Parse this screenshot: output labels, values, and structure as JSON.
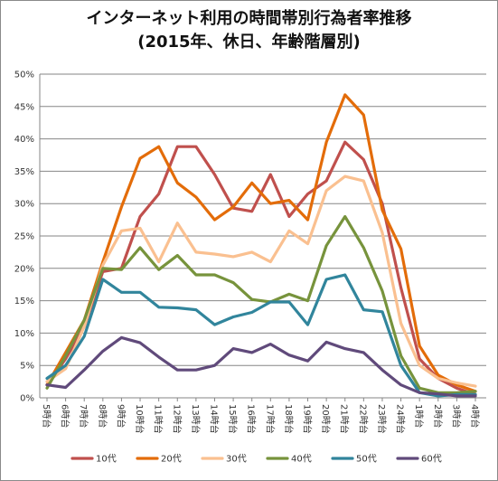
{
  "chart_data": {
    "type": "line",
    "title": "インターネット利用の時間帯別行為者率推移",
    "subtitle": "(2015年、休日、年齢階層別)",
    "xlabel": "",
    "ylabel": "",
    "categories": [
      "5時台",
      "6時台",
      "7時台",
      "8時台",
      "9時台",
      "10時台",
      "11時台",
      "12時台",
      "13時台",
      "14時台",
      "15時台",
      "16時台",
      "17時台",
      "18時台",
      "19時台",
      "20時台",
      "21時台",
      "22時台",
      "23時台",
      "24時台",
      "1時台",
      "2時台",
      "3時台",
      "4時台"
    ],
    "ylim": [
      0,
      50
    ],
    "yticks": [
      "0%",
      "5%",
      "10%",
      "15%",
      "20%",
      "25%",
      "30%",
      "35%",
      "40%",
      "45%",
      "50%"
    ],
    "grid": true,
    "legend_position": "bottom",
    "series": [
      {
        "name": "10代",
        "color": "#c0504d",
        "values": [
          2,
          6,
          11,
          19.5,
          20,
          28,
          31.5,
          38.8,
          38.8,
          34.5,
          29.3,
          28.8,
          34.5,
          28,
          31.5,
          33.5,
          39.5,
          36.8,
          30,
          17,
          6,
          3,
          1.5,
          0.5
        ]
      },
      {
        "name": "20代",
        "color": "#e36c09",
        "values": [
          2,
          7,
          12,
          21,
          29.5,
          37,
          38.8,
          33.2,
          31,
          27.5,
          29.5,
          33.2,
          30,
          30.5,
          27.5,
          39.5,
          46.8,
          43.7,
          29,
          23,
          8,
          3.5,
          2,
          1
        ]
      },
      {
        "name": "30代",
        "color": "#fac090",
        "values": [
          2.5,
          4.5,
          11,
          20.5,
          25.8,
          26.2,
          21,
          27,
          22.5,
          22.2,
          21.8,
          22.5,
          21,
          25.8,
          23.8,
          32,
          34.2,
          33.5,
          25.5,
          11.5,
          5,
          3,
          2.3,
          1.8
        ]
      },
      {
        "name": "40代",
        "color": "#77933c",
        "values": [
          1.5,
          6.5,
          12,
          20,
          19.8,
          23.2,
          19.8,
          22,
          19,
          19,
          17.8,
          15.2,
          14.8,
          16,
          15,
          23.5,
          28,
          23.2,
          16.5,
          6.5,
          1.5,
          0.8,
          0.8,
          1
        ]
      },
      {
        "name": "50代",
        "color": "#31859c",
        "values": [
          3,
          5,
          9.5,
          18.3,
          16.3,
          16.3,
          14,
          13.9,
          13.6,
          11.3,
          12.5,
          13.2,
          14.8,
          14.8,
          11.3,
          18.3,
          19,
          13.6,
          13.3,
          5,
          0.8,
          0.3,
          0.5,
          0.5
        ]
      },
      {
        "name": "60代",
        "color": "#604a7b",
        "values": [
          2,
          1.6,
          4.3,
          7.2,
          9.3,
          8.5,
          6.3,
          4.3,
          4.3,
          5,
          7.6,
          7,
          8.3,
          6.6,
          5.7,
          8.6,
          7.6,
          7,
          4.3,
          2,
          0.8,
          0.6,
          0.3,
          0.3
        ]
      }
    ]
  }
}
